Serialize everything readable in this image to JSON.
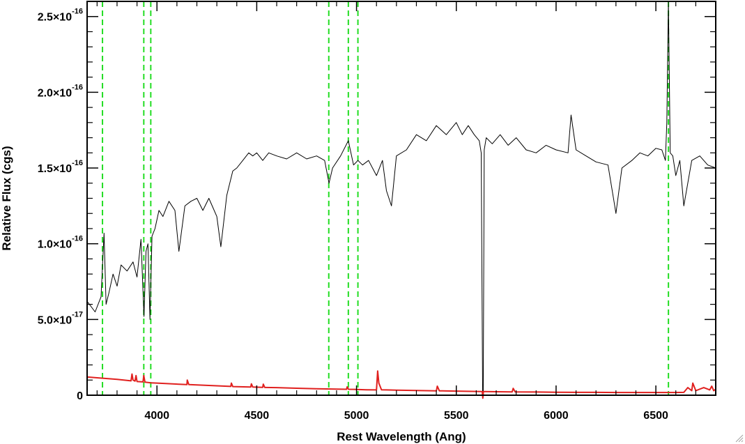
{
  "chart_data": {
    "type": "line",
    "title": "",
    "xlabel": "Rest Wavelength (Ang)",
    "ylabel": "Relative Flux (cgs)",
    "xlim": [
      3650,
      6800
    ],
    "ylim": [
      0,
      2.6e-16
    ],
    "x_ticks": [
      {
        "value": 4000,
        "label": "4000"
      },
      {
        "value": 4500,
        "label": "4500"
      },
      {
        "value": 5000,
        "label": "5000"
      },
      {
        "value": 5500,
        "label": "5500"
      },
      {
        "value": 6000,
        "label": "6000"
      },
      {
        "value": 6500,
        "label": "6500"
      }
    ],
    "y_ticks": [
      {
        "value": 0,
        "mantissa": "0",
        "exponent": ""
      },
      {
        "value": 5e-17,
        "mantissa": "5.0×10",
        "exponent": "-17"
      },
      {
        "value": 1e-16,
        "mantissa": "1.0×10",
        "exponent": "-16"
      },
      {
        "value": 1.5e-16,
        "mantissa": "1.5×10",
        "exponent": "-16"
      },
      {
        "value": 2e-16,
        "mantissa": "2.0×10",
        "exponent": "-16"
      },
      {
        "value": 2.5e-16,
        "mantissa": "2.5×10",
        "exponent": "-16"
      }
    ],
    "grid": false,
    "legend": "none",
    "series": [
      {
        "color": "#000000",
        "style": "solid",
        "x": [
          3650,
          3690,
          3720,
          3735,
          3745,
          3760,
          3780,
          3800,
          3820,
          3850,
          3880,
          3900,
          3920,
          3935,
          3945,
          3955,
          3965,
          3975,
          3990,
          4010,
          4030,
          4060,
          4090,
          4110,
          4140,
          4170,
          4200,
          4230,
          4260,
          4280,
          4300,
          4320,
          4350,
          4380,
          4400,
          4430,
          4460,
          4480,
          4500,
          4530,
          4560,
          4600,
          4650,
          4700,
          4750,
          4800,
          4840,
          4862,
          4880,
          4920,
          4959,
          4985,
          5007,
          5030,
          5060,
          5100,
          5130,
          5150,
          5175,
          5200,
          5250,
          5300,
          5350,
          5400,
          5450,
          5500,
          5530,
          5560,
          5590,
          5615,
          5625,
          5632,
          5635,
          5640,
          5650,
          5680,
          5720,
          5760,
          5800,
          5850,
          5900,
          5950,
          6000,
          6060,
          6075,
          6100,
          6150,
          6200,
          6260,
          6290,
          6300,
          6330,
          6380,
          6420,
          6460,
          6500,
          6530,
          6548,
          6555,
          6563,
          6572,
          6585,
          6600,
          6620,
          6640,
          6680,
          6720,
          6760,
          6800
        ],
        "values": [
          6.2e-17,
          5.5e-17,
          6.5e-17,
          1.07e-16,
          6e-17,
          6.8e-17,
          8e-17,
          7.2e-17,
          8.6e-17,
          8.2e-17,
          8.8e-17,
          7.8e-17,
          1.03e-16,
          5.2e-17,
          9.5e-17,
          1e-16,
          5e-17,
          1.05e-16,
          1.1e-16,
          1.22e-16,
          1.18e-16,
          1.28e-16,
          1.22e-16,
          9.5e-17,
          1.25e-16,
          1.28e-16,
          1.3e-16,
          1.22e-16,
          1.3e-16,
          1.24e-16,
          1.18e-16,
          9.8e-17,
          1.32e-16,
          1.48e-16,
          1.5e-16,
          1.55e-16,
          1.6e-16,
          1.58e-16,
          1.6e-16,
          1.55e-16,
          1.6e-16,
          1.58e-16,
          1.56e-16,
          1.6e-16,
          1.56e-16,
          1.58e-16,
          1.55e-16,
          1.4e-16,
          1.5e-16,
          1.58e-16,
          1.68e-16,
          1.52e-16,
          1.55e-16,
          1.52e-16,
          1.55e-16,
          1.45e-16,
          1.55e-16,
          1.35e-16,
          1.25e-16,
          1.58e-16,
          1.62e-16,
          1.72e-16,
          1.68e-16,
          1.78e-16,
          1.72e-16,
          1.8e-16,
          1.72e-16,
          1.78e-16,
          1.72e-16,
          1.68e-16,
          1.6e-16,
          2e-18,
          2e-18,
          1.62e-16,
          1.7e-16,
          1.66e-16,
          1.72e-16,
          1.65e-16,
          1.7e-16,
          1.62e-16,
          1.6e-16,
          1.65e-16,
          1.62e-16,
          1.6e-16,
          1.85e-16,
          1.62e-16,
          1.58e-16,
          1.54e-16,
          1.52e-16,
          1.28e-16,
          1.2e-16,
          1.5e-16,
          1.55e-16,
          1.6e-16,
          1.58e-16,
          1.63e-16,
          1.62e-16,
          1.55e-16,
          1.8e-16,
          2.6e-16,
          1.6e-16,
          1.58e-16,
          1.45e-16,
          1.55e-16,
          1.25e-16,
          1.55e-16,
          1.58e-16,
          1.52e-16,
          1.5e-16
        ]
      },
      {
        "color": "#e0201e",
        "style": "solid",
        "x": [
          3650,
          3700,
          3800,
          3870,
          3875,
          3880,
          3890,
          3895,
          3900,
          3930,
          3934,
          3940,
          3970,
          4000,
          4150,
          4152,
          4160,
          4200,
          4300,
          4370,
          4373,
          4380,
          4470,
          4473,
          4480,
          4530,
          4533,
          4540,
          4600,
          4700,
          4800,
          4900,
          4950,
          4953,
          4960,
          5000,
          5050,
          5100,
          5106,
          5112,
          5125,
          5150,
          5200,
          5250,
          5300,
          5400,
          5405,
          5415,
          5450,
          5500,
          5550,
          5630,
          5633,
          5636,
          5640,
          5700,
          5780,
          5785,
          5795,
          5900,
          6000,
          6100,
          6200,
          6300,
          6400,
          6500,
          6600,
          6640,
          6660,
          6680,
          6685,
          6700,
          6740,
          6770,
          6780,
          6790,
          6800
        ],
        "values": [
          1.2e-17,
          1.15e-17,
          1.05e-17,
          9.5e-18,
          1.4e-17,
          1e-17,
          9.3e-18,
          1.3e-17,
          9e-18,
          8.8e-18,
          1.3e-17,
          8.6e-18,
          8.2e-18,
          8e-18,
          7e-18,
          1e-17,
          7e-18,
          6.8e-18,
          6.2e-18,
          5.8e-18,
          8e-18,
          5.7e-18,
          5.4e-18,
          7.5e-18,
          5.4e-18,
          5.2e-18,
          7.3e-18,
          5.1e-18,
          5e-18,
          4.6e-18,
          4.3e-18,
          4e-18,
          3.9e-18,
          5.5e-18,
          3.9e-18,
          3.8e-18,
          3.6e-18,
          3.5e-18,
          1.6e-17,
          8e-18,
          3.6e-18,
          3.5e-18,
          3.3e-18,
          3.2e-18,
          3.1e-18,
          2.9e-18,
          6e-18,
          2.9e-18,
          2.8e-18,
          2.7e-18,
          2.6e-18,
          2.4e-18,
          -3e-18,
          2.4e-18,
          2.4e-18,
          2.3e-18,
          2.2e-18,
          4.5e-18,
          2.2e-18,
          2.1e-18,
          2e-18,
          1.9e-18,
          1.9e-18,
          1.8e-18,
          1.8e-18,
          1.8e-18,
          1.8e-18,
          1.9e-18,
          5e-18,
          3e-18,
          8e-18,
          3e-18,
          5e-18,
          3.5e-18,
          6e-18,
          3e-18,
          4e-18
        ]
      }
    ],
    "vlines": [
      {
        "x": 3727,
        "color": "#22dd22",
        "style": "dashed"
      },
      {
        "x": 3934,
        "color": "#22dd22",
        "style": "dashed"
      },
      {
        "x": 3969,
        "color": "#22dd22",
        "style": "dashed"
      },
      {
        "x": 4861,
        "color": "#22dd22",
        "style": "dashed"
      },
      {
        "x": 4959,
        "color": "#22dd22",
        "style": "dashed"
      },
      {
        "x": 5007,
        "color": "#22dd22",
        "style": "dashed"
      },
      {
        "x": 6563,
        "color": "#22dd22",
        "style": "dashed"
      }
    ]
  }
}
